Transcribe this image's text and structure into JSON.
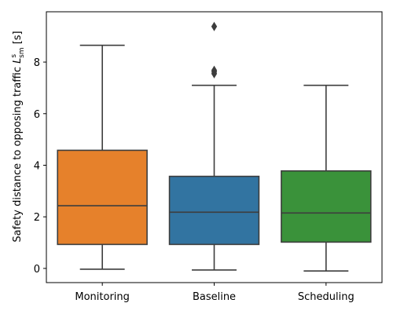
{
  "chart_data": {
    "type": "box",
    "ylabel": {
      "prefix": "Safety distance to opposing traffic ",
      "var": "L",
      "sup": "s",
      "sub": "sm",
      "suffix": " [s]"
    },
    "ylim": [
      -0.55,
      9.95
    ],
    "yticks": [
      0,
      2,
      4,
      6,
      8
    ],
    "categories": [
      "Monitoring",
      "Baseline",
      "Scheduling"
    ],
    "series": [
      {
        "name": "Monitoring",
        "color": "#e6812b",
        "whisker_low": -0.03,
        "q1": 0.93,
        "median": 2.43,
        "q3": 4.58,
        "whisker_high": 8.65,
        "outliers": []
      },
      {
        "name": "Baseline",
        "color": "#3274a1",
        "whisker_low": -0.06,
        "q1": 0.93,
        "median": 2.18,
        "q3": 3.57,
        "whisker_high": 7.1,
        "outliers": [
          7.55,
          7.62,
          7.68,
          9.38
        ]
      },
      {
        "name": "Scheduling",
        "color": "#3a923a",
        "whisker_low": -0.1,
        "q1": 1.02,
        "median": 2.15,
        "q3": 3.78,
        "whisker_high": 7.1,
        "outliers": []
      }
    ],
    "grid": false
  }
}
